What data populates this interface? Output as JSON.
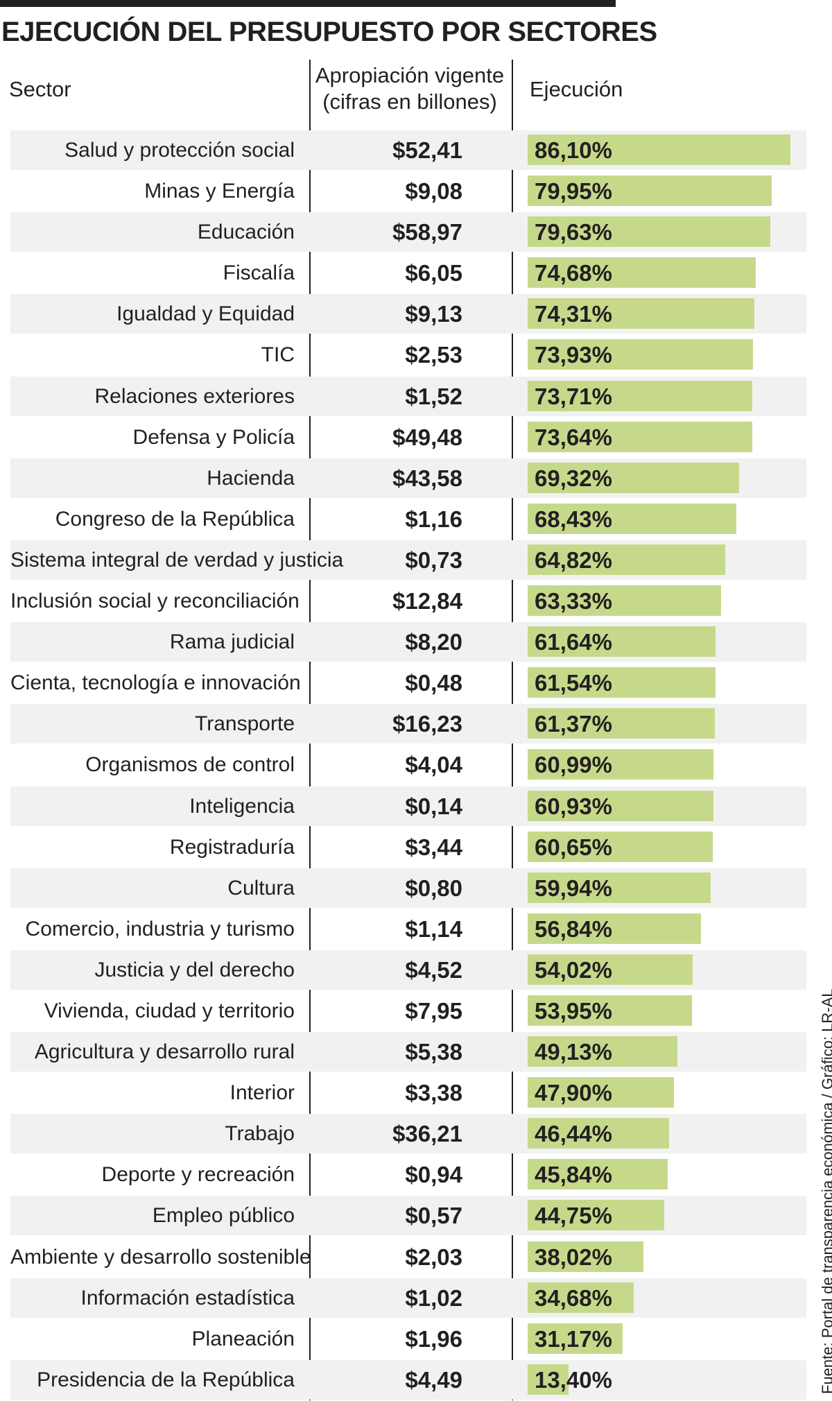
{
  "title": "EJECUCIÓN DEL PRESUPUESTO POR SECTORES",
  "headers": {
    "sector": "Sector",
    "approp_line1": "Apropiación vigente",
    "approp_line2": "(cifras en billones)",
    "execution": "Ejecución"
  },
  "source": "Fuente: Portal de transparencia económica / Gráfico: LR-AL",
  "colors": {
    "bar": "#c6d98b",
    "row_shade": "#f1f1f1",
    "text": "#231f20"
  },
  "chart_data": {
    "type": "bar",
    "orientation": "horizontal",
    "xlim": [
      0,
      100
    ],
    "categories": [
      "Salud y protección social",
      "Minas y Energía",
      "Educación",
      "Fiscalía",
      "Igualdad y Equidad",
      "TIC",
      "Relaciones exteriores",
      "Defensa y Policía",
      "Hacienda",
      "Congreso de la República",
      "Sistema integral de verdad y justicia",
      "Inclusión social y reconciliación",
      "Rama judicial",
      "Cienta, tecnología e innovación",
      "Transporte",
      "Organismos de control",
      "Inteligencia",
      "Registraduría",
      "Cultura",
      "Comercio, industria y turismo",
      "Justicia y del derecho",
      "Vivienda, ciudad y territorio",
      "Agricultura y desarrollo rural",
      "Interior",
      "Trabajo",
      "Deporte y recreación",
      "Empleo público",
      "Ambiente y desarrollo sostenible",
      "Información estadística",
      "Planeación",
      "Presidencia de la República"
    ],
    "amounts": [
      "$52,41",
      "$9,08",
      "$58,97",
      "$6,05",
      "$9,13",
      "$2,53",
      "$1,52",
      "$49,48",
      "$43,58",
      "$1,16",
      "$0,73",
      "$12,84",
      "$8,20",
      "$0,48",
      "$16,23",
      "$4,04",
      "$0,14",
      "$3,44",
      "$0,80",
      "$1,14",
      "$4,52",
      "$7,95",
      "$5,38",
      "$3,38",
      "$36,21",
      "$0,94",
      "$0,57",
      "$2,03",
      "$1,02",
      "$1,96",
      "$4,49"
    ],
    "values": [
      86.1,
      79.95,
      79.63,
      74.68,
      74.31,
      73.93,
      73.71,
      73.64,
      69.32,
      68.43,
      64.82,
      63.33,
      61.64,
      61.54,
      61.37,
      60.99,
      60.93,
      60.65,
      59.94,
      56.84,
      54.02,
      53.95,
      49.13,
      47.9,
      46.44,
      45.84,
      44.75,
      38.02,
      34.68,
      31.17,
      13.4
    ],
    "value_labels": [
      "86,10%",
      "79,95%",
      "79,63%",
      "74,68%",
      "74,31%",
      "73,93%",
      "73,71%",
      "73,64%",
      "69,32%",
      "68,43%",
      "64,82%",
      "63,33%",
      "61,64%",
      "61,54%",
      "61,37%",
      "60,99%",
      "60,93%",
      "60,65%",
      "59,94%",
      "56,84%",
      "54,02%",
      "53,95%",
      "49,13%",
      "47,90%",
      "46,44%",
      "45,84%",
      "44,75%",
      "38,02%",
      "34,68%",
      "31,17%",
      "13,40%"
    ]
  }
}
